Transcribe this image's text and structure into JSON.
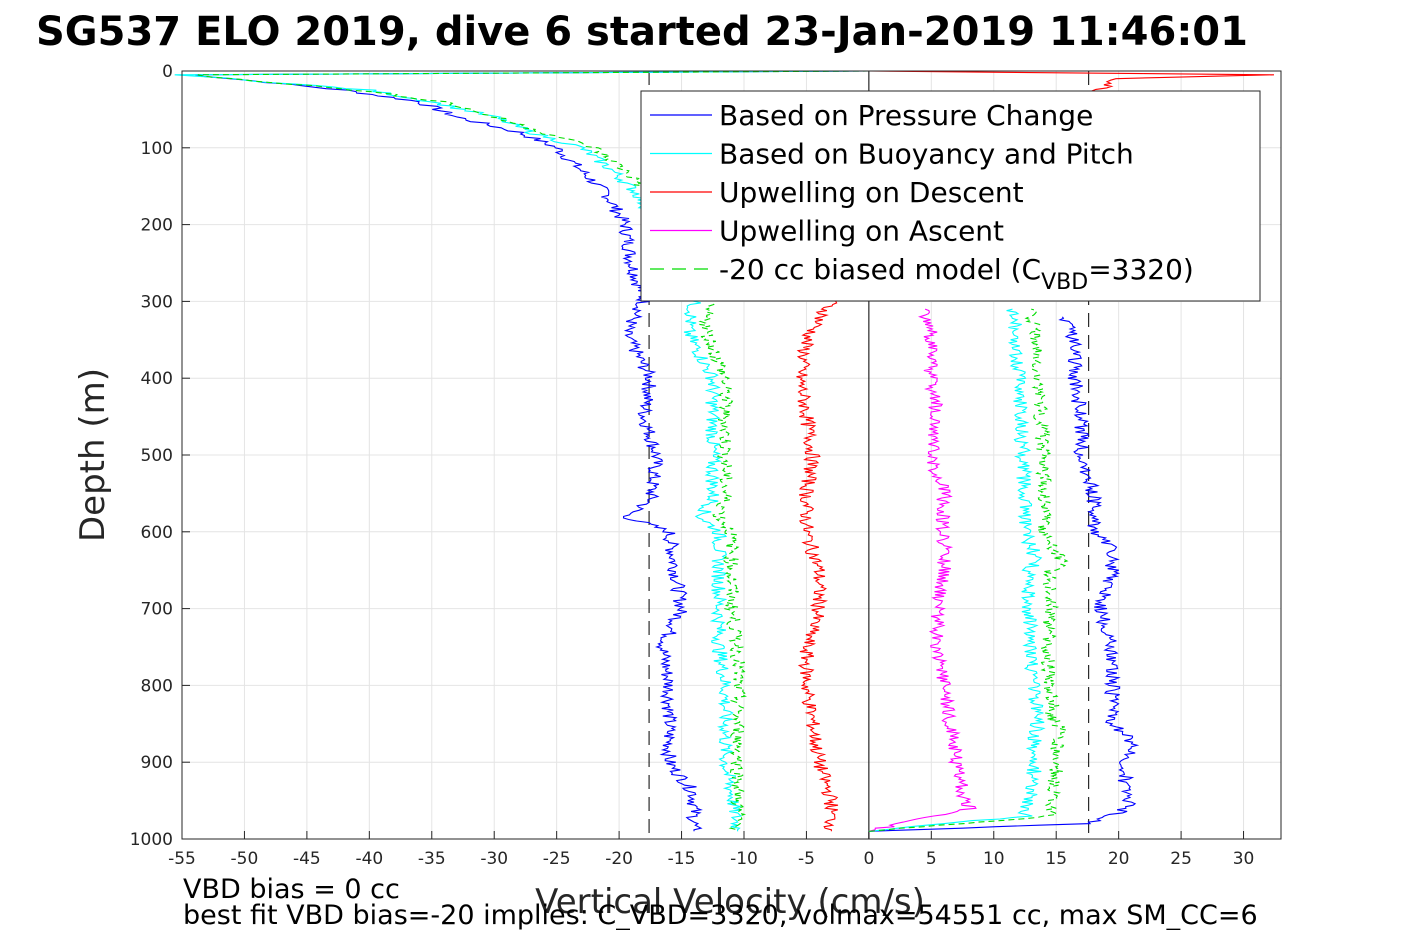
{
  "chart_data": {
    "type": "line",
    "title": "SG537 ELO 2019, dive 6 started 23-Jan-2019 11:46:01",
    "xlabel": "Vertical Velocity (cm/s)",
    "ylabel": "Depth (m)",
    "xlim": [
      -55,
      33
    ],
    "ylim": [
      1000,
      0
    ],
    "y_reversed": true,
    "grid": true,
    "legend_position": "upper-right",
    "xticks": [
      "-55",
      "-50",
      "-45",
      "-40",
      "-35",
      "-30",
      "-25",
      "-20",
      "-15",
      "-10",
      "-5",
      "0",
      "5",
      "10",
      "15",
      "20",
      "25",
      "30"
    ],
    "yticks": [
      "0",
      "100",
      "200",
      "300",
      "400",
      "500",
      "600",
      "700",
      "800",
      "900",
      "1000"
    ],
    "reference_lines": [
      {
        "x": -17.6,
        "style": "dashed",
        "color": "#000000"
      },
      {
        "x": 17.6,
        "style": "dashed",
        "color": "#000000"
      },
      {
        "x": 0,
        "style": "solid",
        "color": "#000000"
      }
    ],
    "series": [
      {
        "name": "Based on Pressure Change",
        "color": "#0000ff",
        "style": "solid",
        "descent": {
          "depth": [
            0,
            5,
            25,
            40,
            60,
            80,
            100,
            130,
            160,
            200,
            250,
            300,
            340,
            400,
            450,
            500,
            560,
            580,
            600,
            650,
            700,
            750,
            800,
            850,
            900,
            940,
            990
          ],
          "v": [
            0,
            -54,
            -42,
            -36,
            -33,
            -28,
            -25,
            -23,
            -21,
            -19.5,
            -19,
            -18,
            -19.5,
            -17.5,
            -18,
            -17,
            -17.5,
            -19.5,
            -16,
            -15.5,
            -15,
            -16.5,
            -16,
            -16,
            -16,
            -14,
            -14
          ]
        },
        "ascent": {
          "depth": [
            990,
            980,
            960,
            930,
            900,
            880,
            850,
            800,
            750,
            700,
            650,
            620,
            600,
            550,
            500,
            450,
            400,
            350,
            320
          ],
          "v": [
            0,
            17.5,
            20.8,
            20.5,
            20.5,
            21.5,
            19.5,
            19.5,
            19.5,
            18.5,
            19.5,
            19.5,
            18,
            18,
            17,
            17,
            16.5,
            16.5,
            15.5
          ]
        }
      },
      {
        "name": "Based on Buoyancy and Pitch",
        "color": "#00ffff",
        "style": "solid",
        "descent": {
          "depth": [
            0,
            5,
            25,
            40,
            60,
            80,
            100,
            130,
            160,
            200,
            250,
            300,
            340,
            400,
            450,
            500,
            560,
            580,
            600,
            650,
            700,
            750,
            800,
            850,
            900,
            940,
            990
          ],
          "v": [
            0,
            -55,
            -40,
            -35,
            -30,
            -27,
            -23,
            -20.5,
            -18.5,
            -17,
            -16,
            -14,
            -14.5,
            -12.5,
            -12.5,
            -12.5,
            -12.5,
            -13.5,
            -12,
            -12,
            -12,
            -12,
            -11.5,
            -11.5,
            -11.5,
            -11,
            -10.5
          ]
        },
        "ascent": {
          "depth": [
            990,
            970,
            940,
            900,
            870,
            850,
            800,
            750,
            700,
            650,
            640,
            600,
            550,
            500,
            450,
            400,
            350,
            310
          ],
          "v": [
            0,
            12.5,
            13,
            13.3,
            13.3,
            13.5,
            13.2,
            13,
            12.8,
            12.8,
            13.5,
            12.5,
            12.5,
            12.3,
            12.2,
            12,
            11.8,
            11.5
          ]
        }
      },
      {
        "name": "Upwelling on Descent",
        "color": "#ff0000",
        "style": "solid",
        "descent": {
          "depth": [
            0,
            5,
            10,
            30,
            300,
            350,
            400,
            450,
            500,
            550,
            600,
            650,
            700,
            750,
            800,
            850,
            900,
            950,
            990
          ],
          "v": [
            0,
            32,
            20,
            18,
            -3,
            -5,
            -5.5,
            -5,
            -4.5,
            -5,
            -5,
            -4,
            -4,
            -5,
            -5,
            -4.5,
            -4,
            -3,
            -3
          ]
        }
      },
      {
        "name": "Upwelling on Ascent",
        "color": "#ff00ff",
        "style": "solid",
        "ascent": {
          "depth": [
            990,
            970,
            960,
            940,
            900,
            850,
            800,
            750,
            700,
            650,
            600,
            550,
            500,
            450,
            400,
            350,
            310
          ],
          "v": [
            0,
            5,
            8,
            7.5,
            7,
            6.5,
            6,
            5.5,
            5.5,
            6,
            6,
            6,
            5,
            5.5,
            5,
            5,
            4.5
          ]
        }
      },
      {
        "name": "-20 cc biased model",
        "color": "#00dd00",
        "style": "dashed",
        "descent": {
          "depth": [
            0,
            5,
            25,
            40,
            60,
            80,
            100,
            130,
            160,
            200,
            250,
            300,
            340,
            400,
            450,
            500,
            560,
            580,
            600,
            650,
            700,
            750,
            800,
            850,
            900,
            940,
            990
          ],
          "v": [
            0,
            -54,
            -41,
            -34,
            -30,
            -26,
            -22,
            -19.5,
            -17.5,
            -16,
            -14.5,
            -13,
            -13,
            -11.5,
            -11.5,
            -11.5,
            -11.5,
            -12,
            -11,
            -11,
            -11,
            -10.5,
            -10.5,
            -10.5,
            -10.5,
            -10.5,
            -10.5
          ]
        },
        "ascent": {
          "depth": [
            990,
            970,
            940,
            900,
            870,
            860,
            850,
            800,
            750,
            700,
            650,
            640,
            600,
            550,
            500,
            450,
            400,
            350,
            310
          ],
          "v": [
            0,
            14.5,
            14.8,
            15,
            15,
            16,
            14.8,
            14.5,
            14.3,
            14.5,
            14.5,
            15.5,
            14,
            14,
            14,
            13.8,
            13.5,
            13.5,
            13
          ]
        }
      }
    ],
    "legend_entries": [
      {
        "label": "Based on Pressure Change",
        "color": "#0000ff",
        "dashed": false
      },
      {
        "label": "Based on Buoyancy and Pitch",
        "color": "#00ffff",
        "dashed": false
      },
      {
        "label": "Upwelling on Descent",
        "color": "#ff0000",
        "dashed": false
      },
      {
        "label": "Upwelling on Ascent",
        "color": "#ff00ff",
        "dashed": false
      },
      {
        "label_prefix": "-20 cc biased model (C",
        "label_sub": "VBD",
        "label_suffix": "=3320)",
        "color": "#00dd00",
        "dashed": true
      }
    ]
  },
  "notes": {
    "line1": "VBD bias = 0 cc",
    "line2": "best fit VBD bias=-20 implies: C_VBD=3320, volmax=54551 cc, max SM_CC=6"
  }
}
